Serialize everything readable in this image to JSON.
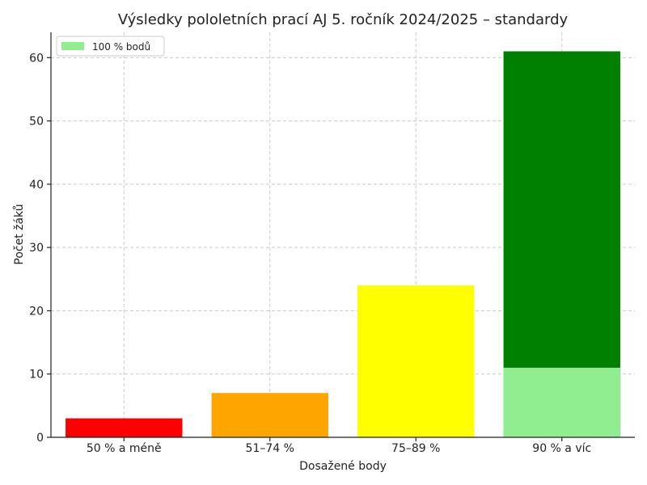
{
  "chart_data": {
    "type": "bar",
    "title": "Výsledky pololetních prací AJ 5. ročník 2024/2025 – standardy",
    "xlabel": "Dosažené body",
    "ylabel": "Počet žáků",
    "categories": [
      "50 % a méně",
      "51–74 %",
      "75–89 %",
      "90 % a víc"
    ],
    "values": [
      3,
      7,
      24,
      61
    ],
    "bar_colors": [
      "#ff0000",
      "#ffa500",
      "#ffff00",
      "#008000"
    ],
    "highlight": {
      "label": "100 % bodů",
      "category": "90 % a víc",
      "value": 11,
      "color": "#90ee90"
    },
    "ylim": [
      0,
      64
    ],
    "yticks": [
      0,
      10,
      20,
      30,
      40,
      50,
      60
    ],
    "grid": true,
    "legend_position": "top-left"
  }
}
